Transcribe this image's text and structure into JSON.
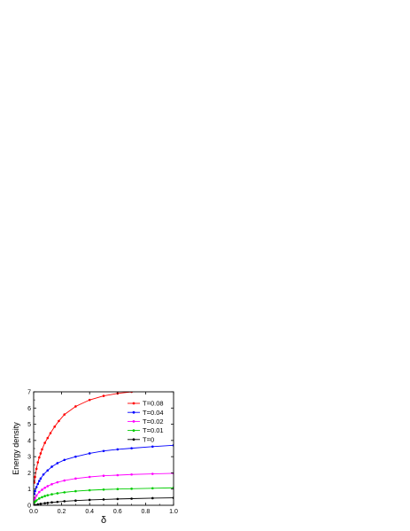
{
  "chart_data": {
    "type": "line",
    "xlabel": "δ",
    "ylabel": "Energy density",
    "xlim": [
      0,
      1
    ],
    "ylim": [
      0,
      7
    ],
    "xticks": [
      0.0,
      0.2,
      0.4,
      0.6,
      0.8,
      1.0
    ],
    "xtick_labels": [
      "0.0",
      "0.2",
      "0.4",
      "0.6",
      "0.8",
      "1.0"
    ],
    "yticks": [
      0,
      1,
      2,
      3,
      4,
      5,
      6,
      7
    ],
    "ytick_labels": [
      "0",
      "1",
      "2",
      "3",
      "4",
      "5",
      "6",
      "7"
    ],
    "grid": false,
    "legend_position": "top-right",
    "series": [
      {
        "name": "T=0.08",
        "color": "#ff0000",
        "x": [
          0.005,
          0.01,
          0.02,
          0.03,
          0.04,
          0.05,
          0.06,
          0.08,
          0.1,
          0.12,
          0.15,
          0.18,
          0.22,
          0.3,
          0.4,
          0.5,
          0.6,
          0.7,
          0.85,
          1.0
        ],
        "y": [
          1.4,
          1.75,
          2.25,
          2.65,
          2.95,
          3.2,
          3.45,
          3.85,
          4.15,
          4.45,
          4.85,
          5.2,
          5.6,
          6.1,
          6.5,
          6.75,
          6.9,
          7.0,
          7.1,
          7.2
        ]
      },
      {
        "name": "T=0.04",
        "color": "#0000ff",
        "x": [
          0.005,
          0.01,
          0.02,
          0.03,
          0.04,
          0.05,
          0.07,
          0.1,
          0.13,
          0.17,
          0.22,
          0.3,
          0.4,
          0.5,
          0.6,
          0.7,
          0.85,
          1.0
        ],
        "y": [
          0.7,
          0.88,
          1.12,
          1.32,
          1.5,
          1.65,
          1.9,
          2.15,
          2.38,
          2.6,
          2.8,
          3.0,
          3.2,
          3.35,
          3.45,
          3.52,
          3.62,
          3.7
        ]
      },
      {
        "name": "T=0.02",
        "color": "#ff00ff",
        "x": [
          0.005,
          0.01,
          0.02,
          0.04,
          0.06,
          0.08,
          0.1,
          0.13,
          0.17,
          0.22,
          0.3,
          0.4,
          0.5,
          0.6,
          0.7,
          0.85,
          1.0
        ],
        "y": [
          0.35,
          0.45,
          0.6,
          0.82,
          0.96,
          1.08,
          1.18,
          1.3,
          1.42,
          1.53,
          1.65,
          1.75,
          1.82,
          1.86,
          1.9,
          1.94,
          1.97
        ]
      },
      {
        "name": "T=0.01",
        "color": "#00cc00",
        "x": [
          0.005,
          0.01,
          0.02,
          0.04,
          0.06,
          0.08,
          0.1,
          0.13,
          0.17,
          0.22,
          0.3,
          0.4,
          0.5,
          0.6,
          0.7,
          0.85,
          1.0
        ],
        "y": [
          0.18,
          0.23,
          0.3,
          0.42,
          0.5,
          0.57,
          0.62,
          0.68,
          0.74,
          0.8,
          0.87,
          0.93,
          0.97,
          1.0,
          1.02,
          1.05,
          1.08
        ]
      },
      {
        "name": "T=0",
        "color": "#000000",
        "x": [
          0.01,
          0.03,
          0.05,
          0.08,
          0.1,
          0.13,
          0.17,
          0.22,
          0.3,
          0.4,
          0.5,
          0.6,
          0.7,
          0.85,
          1.0
        ],
        "y": [
          0.02,
          0.06,
          0.09,
          0.13,
          0.15,
          0.18,
          0.21,
          0.25,
          0.29,
          0.33,
          0.36,
          0.39,
          0.41,
          0.44,
          0.46
        ]
      }
    ]
  }
}
